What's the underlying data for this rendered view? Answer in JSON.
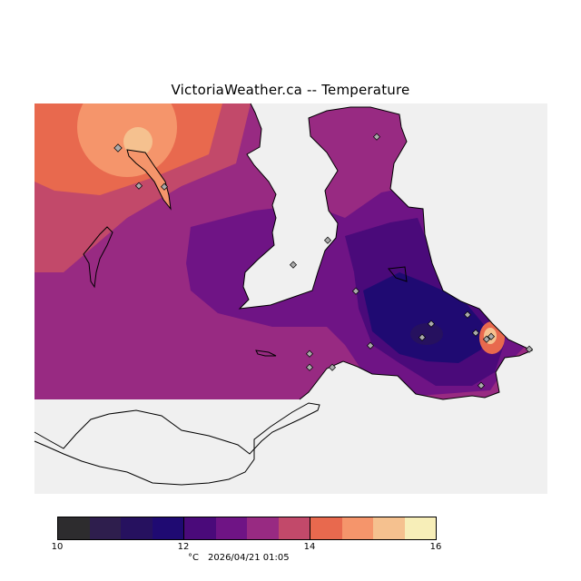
{
  "title": "VictoriaWeather.ca -- Temperature",
  "legend": {
    "ticks": [
      "10",
      "12",
      "14",
      "16"
    ],
    "unit": "°C",
    "timestamp": "2026/04/21 01:05",
    "bins": [
      {
        "from": 10.0,
        "to": 10.5,
        "color": "#2d2c2e"
      },
      {
        "from": 10.5,
        "to": 11.0,
        "color": "#2e1e4d"
      },
      {
        "from": 11.0,
        "to": 11.5,
        "color": "#26115f"
      },
      {
        "from": 11.5,
        "to": 12.0,
        "color": "#1f0a72"
      },
      {
        "from": 12.0,
        "to": 12.5,
        "color": "#4a0a7a"
      },
      {
        "from": 12.5,
        "to": 13.0,
        "color": "#6f1485"
      },
      {
        "from": 13.0,
        "to": 13.5,
        "color": "#982a82"
      },
      {
        "from": 13.5,
        "to": 14.0,
        "color": "#c2496a"
      },
      {
        "from": 14.0,
        "to": 14.5,
        "color": "#e8694e"
      },
      {
        "from": 14.5,
        "to": 15.0,
        "color": "#f5956b"
      },
      {
        "from": 15.0,
        "to": 15.5,
        "color": "#f5c18f"
      },
      {
        "from": 15.5,
        "to": 16.0,
        "color": "#f7eeb8"
      }
    ]
  },
  "map": {
    "background_color": "#f0f0f0",
    "station_marker_color": "#aaaaaa"
  }
}
